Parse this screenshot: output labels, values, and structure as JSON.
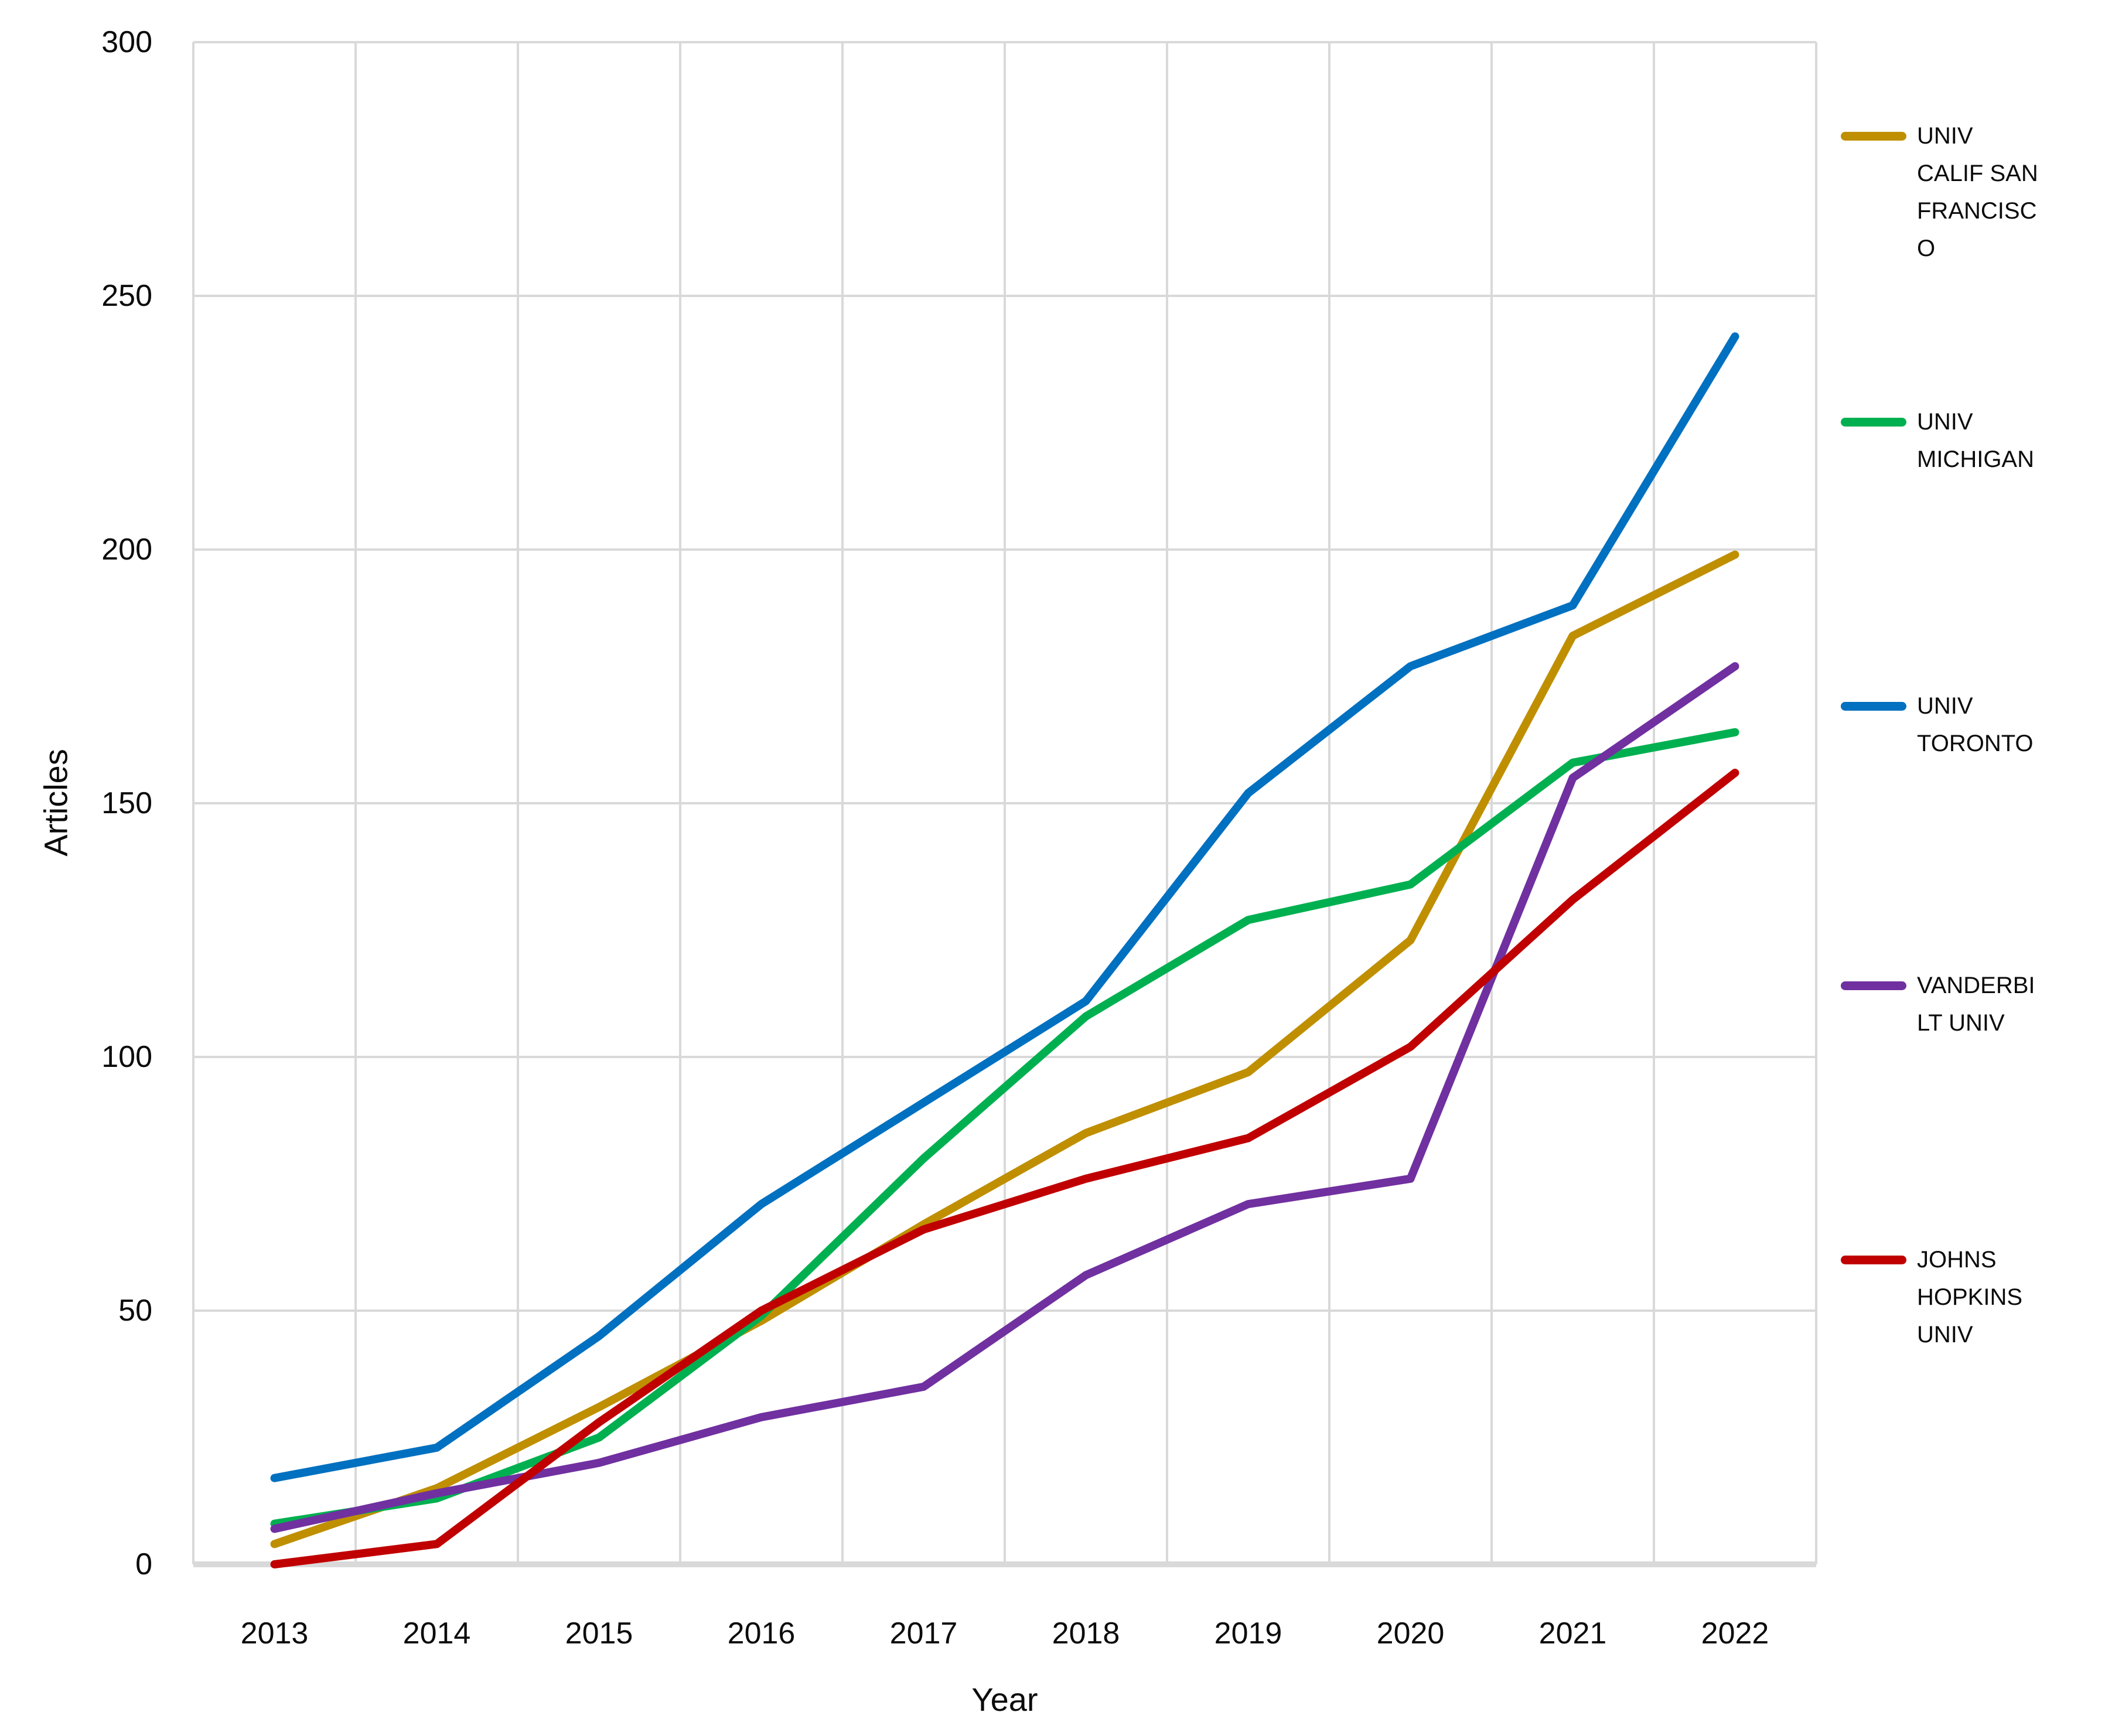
{
  "chart_data": {
    "type": "line",
    "title": "",
    "xlabel": "Year",
    "ylabel": "Articles",
    "categories": [
      "2013",
      "2014",
      "2015",
      "2016",
      "2017",
      "2018",
      "2019",
      "2020",
      "2021",
      "2022"
    ],
    "ylim": [
      0,
      300
    ],
    "yticks": [
      0,
      50,
      100,
      150,
      200,
      250,
      300
    ],
    "grid": true,
    "legend_position": "right",
    "gridline_color": "#D9D9D9",
    "axis_line_color": "#D9D9D9",
    "series": [
      {
        "name": "UNIV CALIF SAN FRANCISCO",
        "color": "#BF8F00",
        "values": [
          4,
          15,
          31,
          48,
          67,
          85,
          97,
          123,
          183,
          199
        ]
      },
      {
        "name": "UNIV MICHIGAN",
        "color": "#00B050",
        "values": [
          8,
          13,
          25,
          49,
          80,
          108,
          127,
          134,
          158,
          164
        ]
      },
      {
        "name": "UNIV TORONTO",
        "color": "#0070C0",
        "values": [
          17,
          23,
          45,
          71,
          91,
          111,
          152,
          177,
          189,
          242
        ]
      },
      {
        "name": "VANDERBILT UNIV",
        "color": "#7030A0",
        "values": [
          7,
          14,
          20,
          29,
          35,
          57,
          71,
          76,
          155,
          177
        ]
      },
      {
        "name": "JOHNS HOPKINS UNIV",
        "color": "#C00000",
        "values": [
          0,
          4,
          28,
          50,
          66,
          76,
          84,
          102,
          131,
          156
        ]
      }
    ]
  }
}
